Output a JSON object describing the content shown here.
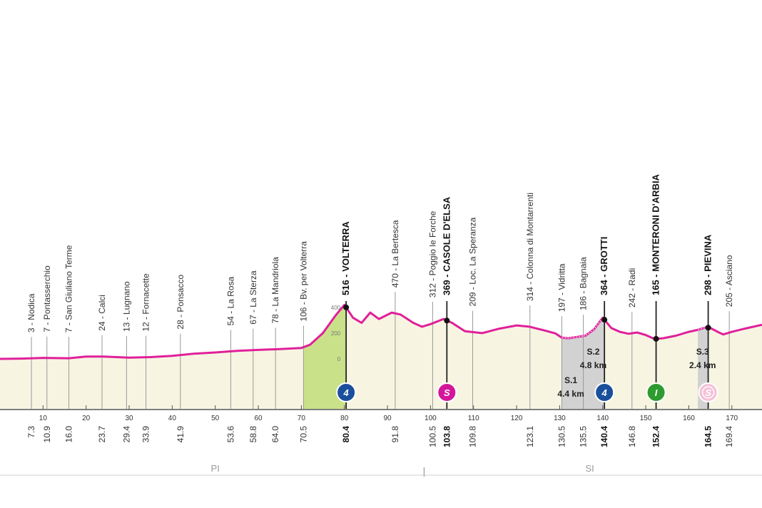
{
  "chart_data": {
    "type": "area",
    "title": "",
    "xlabel": "",
    "ylabel": "",
    "xlim": [
      0,
      177
    ],
    "ylim": [
      0,
      560
    ],
    "x_ticks": [
      10,
      20,
      30,
      40,
      50,
      60,
      70,
      80,
      90,
      100,
      110,
      120,
      130,
      140,
      150,
      160,
      170
    ],
    "alt_scale_labels": [
      "400",
      "200",
      "0"
    ],
    "colors": {
      "profile_line": "#e0209a",
      "fill_plain": "#f7f5e2",
      "fill_climb": "#c9e28a",
      "fill_gravel": "#d2d2d2",
      "sprint_marker": "#d4169a",
      "climb_marker": "#1a4f9c",
      "intermediate_marker": "#2e9b2e",
      "gravel_sprint_marker": "#f4c0d6",
      "axis": "#bbbbbb"
    },
    "profile": [
      [
        0,
        0
      ],
      [
        5,
        2
      ],
      [
        10,
        8
      ],
      [
        16,
        5
      ],
      [
        20,
        18
      ],
      [
        24,
        18
      ],
      [
        30,
        10
      ],
      [
        35,
        14
      ],
      [
        40,
        24
      ],
      [
        45,
        40
      ],
      [
        50,
        50
      ],
      [
        55,
        62
      ],
      [
        60,
        70
      ],
      [
        65,
        76
      ],
      [
        70,
        85
      ],
      [
        72,
        110
      ],
      [
        75,
        200
      ],
      [
        78,
        340
      ],
      [
        80,
        420
      ],
      [
        82,
        320
      ],
      [
        84,
        280
      ],
      [
        86,
        360
      ],
      [
        88,
        310
      ],
      [
        91,
        360
      ],
      [
        93,
        345
      ],
      [
        96,
        280
      ],
      [
        98,
        250
      ],
      [
        100,
        270
      ],
      [
        103,
        310
      ],
      [
        105,
        280
      ],
      [
        108,
        215
      ],
      [
        112,
        200
      ],
      [
        116,
        235
      ],
      [
        120,
        260
      ],
      [
        123,
        250
      ],
      [
        126,
        225
      ],
      [
        129,
        198
      ],
      [
        130.5,
        165
      ],
      [
        132,
        160
      ],
      [
        134,
        170
      ],
      [
        136,
        180
      ],
      [
        138,
        230
      ],
      [
        140,
        320
      ],
      [
        142,
        240
      ],
      [
        144,
        210
      ],
      [
        146,
        195
      ],
      [
        148,
        205
      ],
      [
        150,
        185
      ],
      [
        152,
        155
      ],
      [
        154,
        160
      ],
      [
        157,
        180
      ],
      [
        160,
        210
      ],
      [
        162,
        225
      ],
      [
        164,
        245
      ],
      [
        165,
        240
      ],
      [
        167,
        205
      ],
      [
        168,
        190
      ],
      [
        170,
        210
      ],
      [
        173,
        235
      ],
      [
        177,
        265
      ]
    ],
    "climb_range": [
      70.5,
      80.4
    ],
    "gravel_sectors": [
      {
        "name": "S.1",
        "length": "4.4 km",
        "range": [
          130.5,
          135.5
        ]
      },
      {
        "name": "S.2",
        "length": "4.8 km",
        "range": [
          135.5,
          140.4
        ]
      },
      {
        "name": "S.3",
        "length": "2.4 km",
        "range": [
          162.1,
          164.5
        ]
      }
    ],
    "places": [
      {
        "km": "7.3",
        "x": 7.3,
        "label": "3 - Nodica",
        "major": false
      },
      {
        "km": "10.9",
        "x": 10.9,
        "label": "7 - Pontasserchio",
        "major": false
      },
      {
        "km": "16.0",
        "x": 16.0,
        "label": "7 - San Giuliano Terme",
        "major": false
      },
      {
        "km": "23.7",
        "x": 23.7,
        "label": "24 - Calci",
        "major": false
      },
      {
        "km": "29.4",
        "x": 29.4,
        "label": "13 - Lugnano",
        "major": false
      },
      {
        "km": "33.9",
        "x": 33.9,
        "label": "12 - Fornacette",
        "major": false
      },
      {
        "km": "41.9",
        "x": 41.9,
        "label": "28 - Ponsacco",
        "major": false
      },
      {
        "km": "53.6",
        "x": 53.6,
        "label": "54 - La Rosa",
        "major": false
      },
      {
        "km": "58.8",
        "x": 58.8,
        "label": "67 - La Sterza",
        "major": false
      },
      {
        "km": "64.0",
        "x": 64.0,
        "label": "78 - La Mandriola",
        "major": false
      },
      {
        "km": "70.5",
        "x": 70.5,
        "label": "106 - Bv. per Volterra",
        "major": false
      },
      {
        "km": "80.4",
        "x": 80.4,
        "label": "516 - VOLTERRA",
        "major": true,
        "marker": "climb",
        "marker_text": "4"
      },
      {
        "km": "91.8",
        "x": 91.8,
        "label": "470 - La Bertesca",
        "major": false
      },
      {
        "km": "100.5",
        "x": 100.5,
        "label": "312 - Poggio le Forche",
        "major": false
      },
      {
        "km": "103.8",
        "x": 103.8,
        "label": "369 - CASOLE D'ELSA",
        "major": true,
        "marker": "sprint",
        "marker_text": "S"
      },
      {
        "km": "109.8",
        "x": 109.8,
        "label": "209 - Loc. La Speranza",
        "major": false
      },
      {
        "km": "123.1",
        "x": 123.1,
        "label": "314 - Colonna di Montarrenti",
        "major": false
      },
      {
        "km": "130.5",
        "x": 130.5,
        "label": "197 - Vidritta",
        "major": false
      },
      {
        "km": "135.5",
        "x": 135.5,
        "label": "186 - Bagnaia",
        "major": false
      },
      {
        "km": "140.4",
        "x": 140.4,
        "label": "364 - GROTTI",
        "major": true,
        "marker": "climb",
        "marker_text": "4"
      },
      {
        "km": "146.8",
        "x": 146.8,
        "label": "242 - Radi",
        "major": false
      },
      {
        "km": "152.4",
        "x": 152.4,
        "label": "165 - MONTERONI D'ARBIA",
        "major": true,
        "marker": "intermediate",
        "marker_text": "I"
      },
      {
        "km": "164.5",
        "x": 164.5,
        "label": "298 - PIEVINA",
        "major": true,
        "marker": "gravel_sprint",
        "marker_text": "S"
      },
      {
        "km": "169.4",
        "x": 169.4,
        "label": "205 - Asciano",
        "major": false
      }
    ],
    "provinces": [
      {
        "label": "PI",
        "x": 50
      },
      {
        "label": "SI",
        "x": 137
      }
    ]
  }
}
